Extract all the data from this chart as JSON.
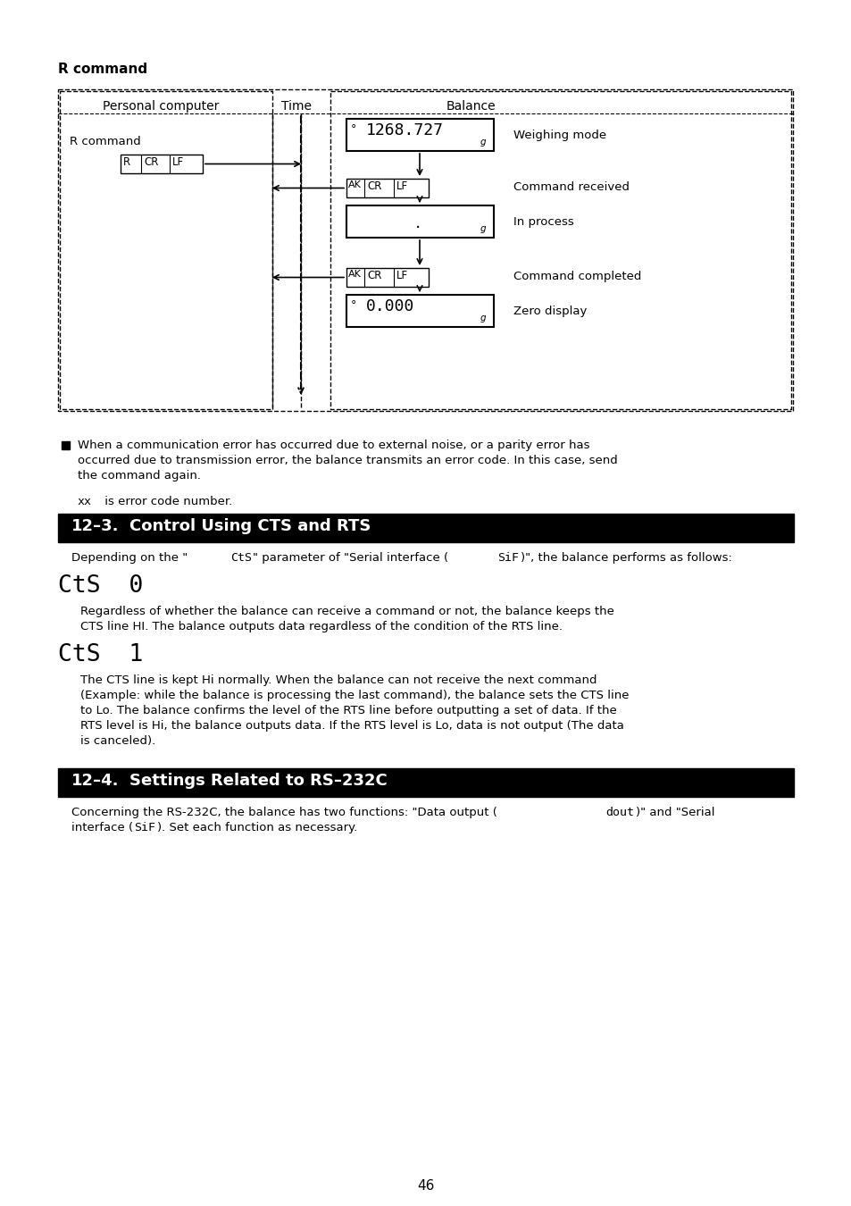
{
  "page_bg": "#ffffff",
  "page_number": "46",
  "r_command_title": "R command",
  "diagram": {
    "pc_label": "Personal computer",
    "time_label": "Time",
    "balance_label": "Balance",
    "r_command_label": "R command",
    "weighing_mode": "Weighing mode",
    "command_received": "Command received",
    "in_process": "In process",
    "command_completed": "Command completed",
    "zero_display_label": "Zero display"
  },
  "bullet_text1_line1": "When a communication error has occurred due to external noise, or a parity error has",
  "bullet_text1_line2": "occurred due to transmission error, the balance transmits an error code. In this case, send",
  "bullet_text1_line3": "the command again.",
  "xx_line1": "xx",
  "xx_line2": " is error code number.",
  "section123_title": "12-3.    Control Using CTS and RTS",
  "cts0_text_line1": "Regardless of whether the balance can receive a command or not, the balance keeps the",
  "cts0_text_line2": "CTS line HI. The balance outputs data regardless of the condition of the RTS line.",
  "cts1_text_line1": "The CTS line is kept Hi normally. When the balance can not receive the next command",
  "cts1_text_line2": "(Example: while the balance is processing the last command), the balance sets the CTS line",
  "cts1_text_line3": "to Lo. The balance confirms the level of the RTS line before outputting a set of data. If the",
  "cts1_text_line4": "RTS level is Hi, the balance outputs data. If the RTS level is Lo, data is not output (The data",
  "cts1_text_line5": "is canceled).",
  "section124_title": "12-4.    Settings Related to RS-232C",
  "sec124_text1a": "Concerning the RS-232C, the balance has two functions: \"Data output (",
  "sec124_text1b": "dout",
  "sec124_text1c": ")\" and \"Serial",
  "sec124_text2a": "interface (",
  "sec124_text2b": "SiF",
  "sec124_text2c": ")\". Set each function as necessary."
}
